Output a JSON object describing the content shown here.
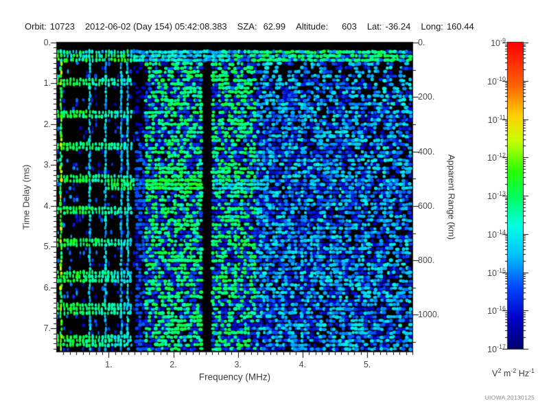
{
  "header": {
    "orbit_label": "Orbit:",
    "orbit": "10723",
    "datetime": "2012-06-02 (Day 154) 05:42:08.383",
    "sza_label": "SZA:",
    "sza": "62.99",
    "altitude_label": "Altitude:",
    "altitude": "603",
    "lat_label": "Lat:",
    "lat": "-36.24",
    "long_label": "Long:",
    "long": "160.44"
  },
  "footer": {
    "credit": "UIOWA 20130125"
  },
  "chart_data": {
    "type": "heatmap",
    "x_axis": {
      "label": "Frequency (MHz)",
      "min": 0.2,
      "max": 5.7,
      "major_ticks": [
        1,
        2,
        3,
        4,
        5
      ],
      "major_tick_labels": [
        "1.",
        "2.",
        "3.",
        "4.",
        "5."
      ],
      "minor_tick_step": 0.1
    },
    "y_axis_left": {
      "label": "Time Delay (ms)",
      "min": 0,
      "max": 7.57,
      "major_ticks": [
        0,
        1,
        2,
        3,
        4,
        5,
        6,
        7
      ],
      "major_tick_labels": [
        "0.",
        "1.",
        "2.",
        "3.",
        "4.",
        "5.",
        "6.",
        "7."
      ],
      "minor_divisions_per_major": 8,
      "inverted": true
    },
    "y_axis_right": {
      "label": "Apparent Range (km)",
      "min": 0,
      "max": 1135,
      "major_ticks": [
        0,
        200,
        400,
        600,
        800,
        1000
      ],
      "major_tick_labels": [
        "0.",
        "200.",
        "400.",
        "600.",
        "800.",
        "1000."
      ],
      "minor_tick_step": 100
    },
    "colorbar": {
      "scale": "log",
      "tick_exponents": [
        -9,
        -10,
        -11,
        -12,
        -13,
        -14,
        -15,
        -16,
        -17
      ],
      "unit_parts": [
        {
          "base": "V",
          "exp": "2"
        },
        {
          "base": "m",
          "exp": "-2"
        },
        {
          "base": "Hz",
          "exp": "-1"
        }
      ],
      "color_stops": [
        {
          "p": 0.0,
          "c": [
            0,
            0,
            110
          ]
        },
        {
          "p": 0.1,
          "c": [
            0,
            0,
            200
          ]
        },
        {
          "p": 0.2,
          "c": [
            0,
            70,
            255
          ]
        },
        {
          "p": 0.3,
          "c": [
            0,
            190,
            255
          ]
        },
        {
          "p": 0.4,
          "c": [
            0,
            255,
            230
          ]
        },
        {
          "p": 0.5,
          "c": [
            0,
            255,
            90
          ]
        },
        {
          "p": 0.58,
          "c": [
            40,
            255,
            0
          ]
        },
        {
          "p": 0.68,
          "c": [
            200,
            255,
            0
          ]
        },
        {
          "p": 0.76,
          "c": [
            255,
            210,
            0
          ]
        },
        {
          "p": 0.86,
          "c": [
            255,
            100,
            0
          ]
        },
        {
          "p": 1.0,
          "c": [
            255,
            0,
            0
          ]
        }
      ]
    },
    "features": {
      "background_color": "#000000",
      "blank_band_delay_ms": [
        0,
        0.16
      ],
      "surface_band_delay_ms": [
        0.16,
        0.46
      ],
      "dense_region_max_mhz": 1.44,
      "plasma_lines_mhz": [
        {
          "f": 0.26,
          "w": 0.028,
          "v": 0.72
        },
        {
          "f": 0.35,
          "w": 0.02,
          "v": 0.42
        },
        {
          "f": 0.45,
          "w": 0.02,
          "v": 0.4
        },
        {
          "f": 0.55,
          "w": 0.018,
          "v": 0.44
        },
        {
          "f": 0.64,
          "w": 0.022,
          "v": 0.58
        },
        {
          "f": 0.72,
          "w": 0.03,
          "v": 0.4
        },
        {
          "f": 0.84,
          "w": 0.02,
          "v": 0.42
        },
        {
          "f": 0.95,
          "w": 0.02,
          "v": 0.4
        },
        {
          "f": 1.08,
          "w": 0.018,
          "v": 0.38
        },
        {
          "f": 1.2,
          "w": 0.015,
          "v": 0.36
        },
        {
          "f": 1.32,
          "w": 0.018,
          "v": 0.42
        }
      ],
      "cyclotron_echoes": {
        "first_delay_ms": 1.0,
        "period_ms": 0.79,
        "count": 9,
        "max_freq_mhz": 1.4
      },
      "ionosphere_trace": {
        "delay_ms": [
          3.32,
          3.68
        ],
        "strong_freq_mhz": [
          1.0,
          2.46
        ],
        "faint_freq_mhz": [
          2.46,
          3.5
        ]
      },
      "absorption_gaps_mhz": [
        [
          1.44,
          1.57
        ],
        [
          2.46,
          2.6
        ]
      ],
      "noise_density_at_1_5mhz": 0.58,
      "noise_density_slope_per_mhz": -0.055
    }
  }
}
